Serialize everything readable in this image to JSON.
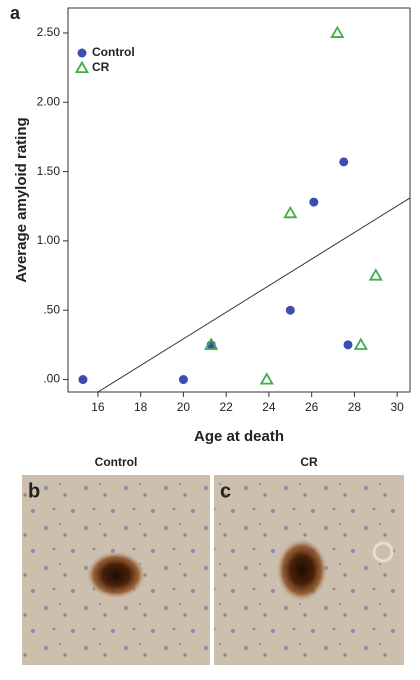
{
  "chart_data": {
    "type": "scatter",
    "x_label": "Age at death",
    "y_label": "Average amyloid rating",
    "xlim": [
      14.6,
      30.6
    ],
    "ylim": [
      -0.09,
      2.68
    ],
    "xticks": [
      16,
      18,
      20,
      22,
      24,
      26,
      28,
      30
    ],
    "yticks": [
      {
        "value": 0,
        "label": ".00"
      },
      {
        "value": 0.5,
        "label": ".50"
      },
      {
        "value": 1,
        "label": "1.00"
      },
      {
        "value": 1.5,
        "label": "1.50"
      },
      {
        "value": 2,
        "label": "2.00"
      },
      {
        "value": 2.5,
        "label": "2.50"
      }
    ],
    "legend": "upper-left",
    "grid": false,
    "series": [
      {
        "name": "Control",
        "color": "#3b4db3",
        "marker": "circle",
        "x": [
          15.3,
          20.0,
          21.3,
          25.0,
          26.1,
          27.5,
          27.7
        ],
        "values": [
          0,
          0,
          0.25,
          0.5,
          1.28,
          1.57,
          0.25
        ]
      },
      {
        "name": "CR",
        "color": "#3cae4a",
        "marker": "triangle",
        "x": [
          21.3,
          23.9,
          25.0,
          27.2,
          28.3,
          29.0
        ],
        "values": [
          0.25,
          0,
          1.2,
          2.5,
          0.25,
          0.75
        ]
      }
    ],
    "fit_line": {
      "x": [
        16.0,
        30.6
      ],
      "y": [
        -0.09,
        1.31
      ]
    }
  },
  "figure": {
    "panel_labels": [
      "a",
      "b",
      "c"
    ],
    "image_titles": [
      "Control",
      "CR"
    ]
  }
}
